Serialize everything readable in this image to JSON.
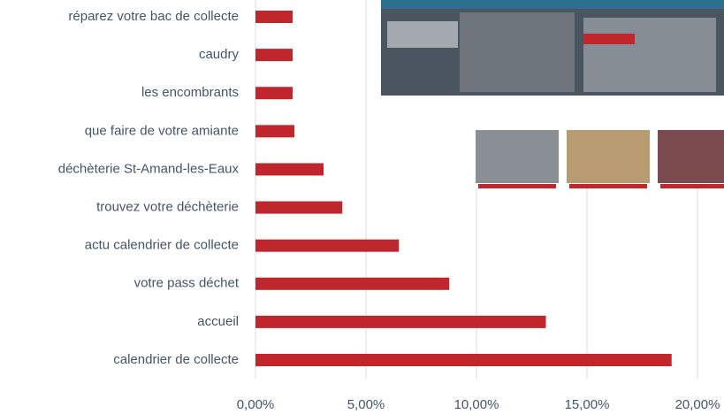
{
  "chart_data": {
    "type": "barh",
    "categories": [
      "réparez votre bac de collecte",
      "caudry",
      "les encombrants",
      "que faire de votre amiante",
      "déchèterie St-Amand-les-Eaux",
      "trouvez votre déchèterie",
      "actu calendrier de collecte",
      "votre pass déchet",
      "accueil",
      "calendrier de collecte"
    ],
    "values": [
      1.68,
      1.68,
      1.68,
      1.76,
      3.08,
      3.93,
      6.49,
      8.77,
      13.14,
      18.83
    ],
    "color": "#c0272d",
    "xlim": [
      0,
      21.2
    ],
    "xticks": [
      {
        "value": 0,
        "label": "0,00%"
      },
      {
        "value": 5,
        "label": "5,00%"
      },
      {
        "value": 10,
        "label": "10,00%"
      },
      {
        "value": 15,
        "label": "15,00%"
      },
      {
        "value": 20,
        "label": "20,00%"
      }
    ],
    "grid": true
  }
}
